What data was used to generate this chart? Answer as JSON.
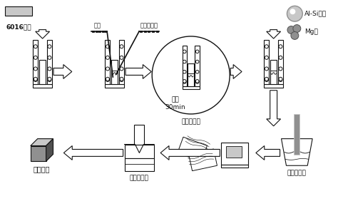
{
  "bg_color": "#ffffff",
  "label_6016": "6016铝锭",
  "label_fq": "氯气",
  "label_mix": "混合盐粉末",
  "label_react": "反应\n30min",
  "label_em": "电磁场调控",
  "label_al_si": "Al-Si合金",
  "label_mg": "Mg粒",
  "label_ultra": "超声场调控",
  "label_press": "压力场调控",
  "label_composite": "复合材料",
  "gray_light": "#c8c8c8",
  "gray_med": "#909090",
  "gray_dark": "#505050",
  "black": "#111111",
  "white": "#ffffff"
}
